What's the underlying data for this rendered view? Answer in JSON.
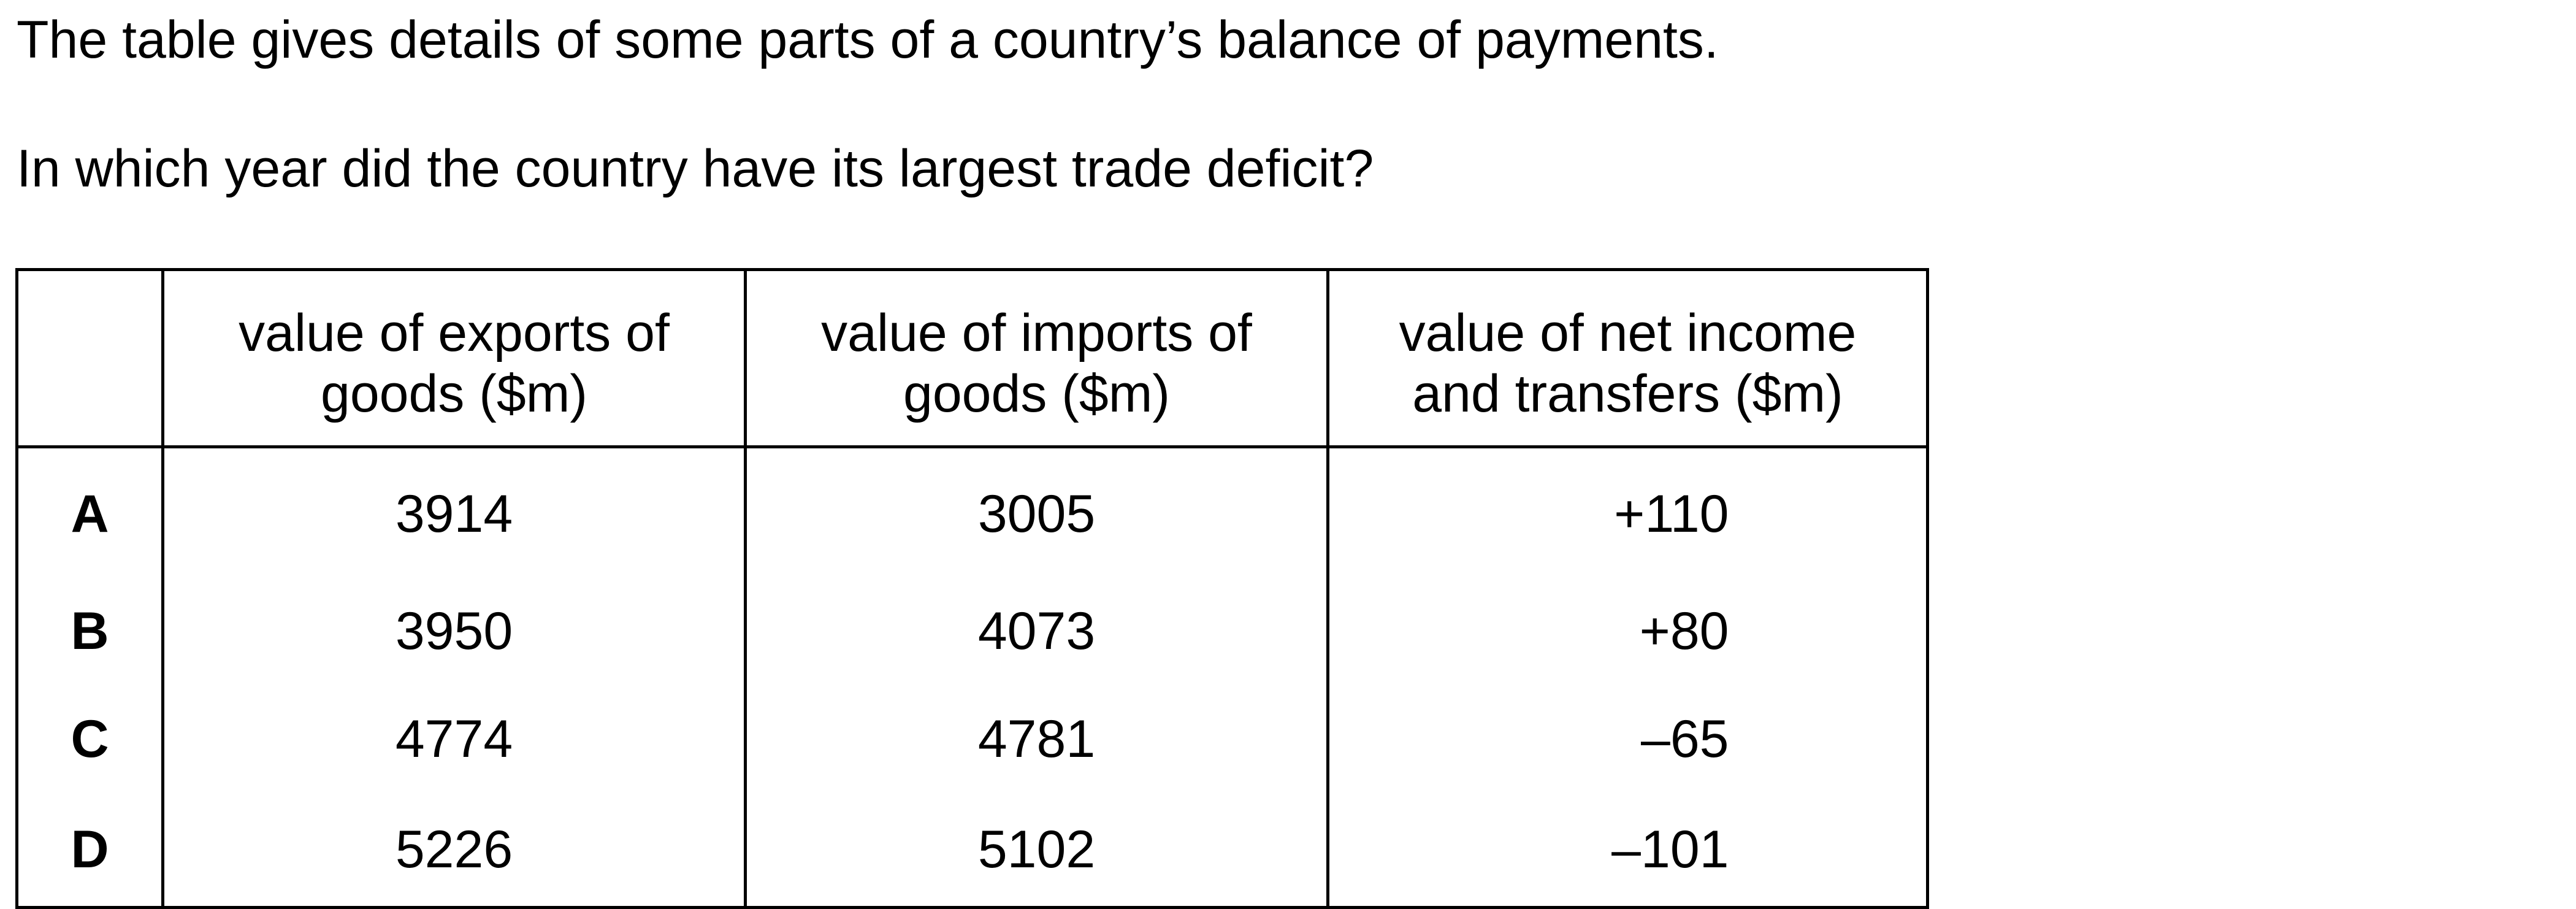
{
  "intro_text": "The table gives details of some parts of a country’s balance of payments.",
  "question_text": "In which year did the country have its largest trade deficit?",
  "table": {
    "headers": [
      "",
      "value of exports of goods ($m)",
      "value of imports of goods ($m)",
      "value of net income and transfers ($m)"
    ],
    "rows": [
      {
        "option": "A",
        "exports": "3914",
        "imports": "3005",
        "net": "+110"
      },
      {
        "option": "B",
        "exports": "3950",
        "imports": "4073",
        "net": "+80"
      },
      {
        "option": "C",
        "exports": "4774",
        "imports": "4781",
        "net": "–65"
      },
      {
        "option": "D",
        "exports": "5226",
        "imports": "5102",
        "net": "–101"
      }
    ]
  }
}
